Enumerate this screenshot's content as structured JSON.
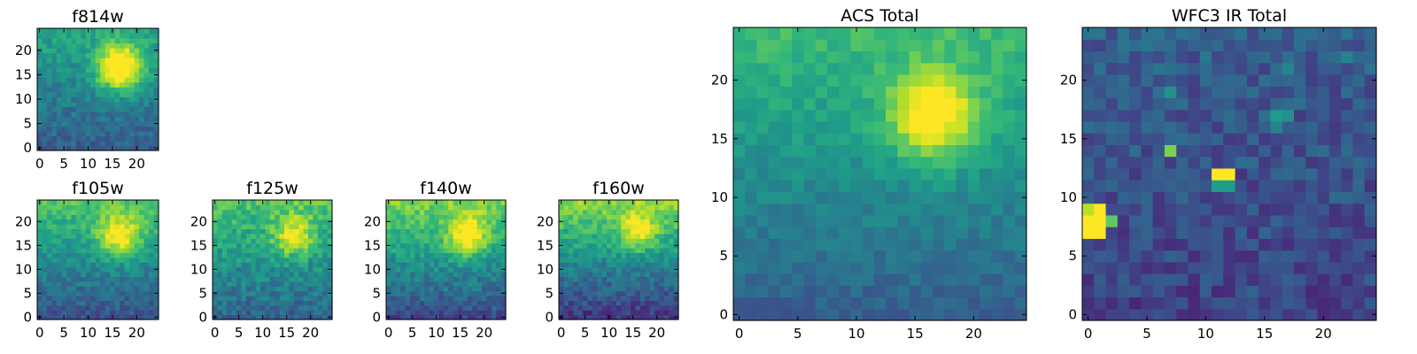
{
  "chart_data": [
    {
      "type": "heatmap",
      "panel": "small",
      "title": "f814w",
      "grid": [
        25,
        25
      ],
      "xlim": [
        0,
        24
      ],
      "ylim": [
        0,
        24
      ],
      "xticks": [
        0,
        5,
        10,
        15,
        20
      ],
      "yticks": [
        0,
        5,
        10,
        15,
        20
      ],
      "xtick_labels": [
        "0",
        "5",
        "10",
        "15",
        "20"
      ],
      "ytick_labels": [
        "0",
        "5",
        "10",
        "15",
        "20"
      ],
      "peaks": [
        {
          "x": 16.5,
          "y": 16.5,
          "amp": 0.75,
          "sigma": 3.2
        }
      ],
      "background": {
        "top": 0.58,
        "bottom": 0.3
      },
      "noise": 0.09,
      "seed": 11
    },
    {
      "type": "heatmap",
      "panel": "small",
      "title": "f105w",
      "grid": [
        25,
        25
      ],
      "xlim": [
        0,
        24
      ],
      "ylim": [
        0,
        24
      ],
      "xticks": [
        0,
        5,
        10,
        15,
        20
      ],
      "yticks": [
        0,
        5,
        10,
        15,
        20
      ],
      "xtick_labels": [
        "0",
        "5",
        "10",
        "15",
        "20"
      ],
      "ytick_labels": [
        "0",
        "5",
        "10",
        "15",
        "20"
      ],
      "peaks": [
        {
          "x": 16.5,
          "y": 17,
          "amp": 0.45,
          "sigma": 3.2
        }
      ],
      "background": {
        "top": 0.72,
        "bottom": 0.25
      },
      "noise": 0.09,
      "seed": 23
    },
    {
      "type": "heatmap",
      "panel": "small",
      "title": "f125w",
      "grid": [
        25,
        25
      ],
      "xlim": [
        0,
        24
      ],
      "ylim": [
        0,
        24
      ],
      "xticks": [
        0,
        5,
        10,
        15,
        20
      ],
      "yticks": [
        0,
        5,
        10,
        15,
        20
      ],
      "xtick_labels": [
        "0",
        "5",
        "10",
        "15",
        "20"
      ],
      "ytick_labels": [
        "0",
        "5",
        "10",
        "15",
        "20"
      ],
      "peaks": [
        {
          "x": 16.5,
          "y": 17,
          "amp": 0.38,
          "sigma": 3.0
        }
      ],
      "background": {
        "top": 0.72,
        "bottom": 0.32
      },
      "noise": 0.11,
      "seed": 37
    },
    {
      "type": "heatmap",
      "panel": "small",
      "title": "f140w",
      "grid": [
        25,
        25
      ],
      "xlim": [
        0,
        24
      ],
      "ylim": [
        0,
        24
      ],
      "xticks": [
        0,
        5,
        10,
        15,
        20
      ],
      "yticks": [
        0,
        5,
        10,
        15,
        20
      ],
      "xtick_labels": [
        "0",
        "5",
        "10",
        "15",
        "20"
      ],
      "ytick_labels": [
        "0",
        "5",
        "10",
        "15",
        "20"
      ],
      "peaks": [
        {
          "x": 16.5,
          "y": 17,
          "amp": 0.45,
          "sigma": 3.0
        }
      ],
      "background": {
        "top": 0.8,
        "bottom": 0.22
      },
      "noise": 0.1,
      "seed": 53
    },
    {
      "type": "heatmap",
      "panel": "small",
      "title": "f160w",
      "grid": [
        25,
        25
      ],
      "xlim": [
        0,
        24
      ],
      "ylim": [
        0,
        24
      ],
      "xticks": [
        0,
        5,
        10,
        15,
        20
      ],
      "yticks": [
        0,
        5,
        10,
        15,
        20
      ],
      "xtick_labels": [
        "0",
        "5",
        "10",
        "15",
        "20"
      ],
      "ytick_labels": [
        "0",
        "5",
        "10",
        "15",
        "20"
      ],
      "peaks": [
        {
          "x": 16,
          "y": 18,
          "amp": 0.35,
          "sigma": 2.8
        }
      ],
      "background": {
        "top": 0.82,
        "bottom": 0.15
      },
      "noise": 0.1,
      "seed": 71
    },
    {
      "type": "heatmap",
      "panel": "large",
      "title": "ACS Total",
      "grid": [
        25,
        25
      ],
      "xlim": [
        0,
        24
      ],
      "ylim": [
        0,
        24
      ],
      "xticks": [
        0,
        5,
        10,
        15,
        20
      ],
      "yticks": [
        0,
        5,
        10,
        15,
        20
      ],
      "xtick_labels": [
        "0",
        "5",
        "10",
        "15",
        "20"
      ],
      "ytick_labels": [
        "0",
        "5",
        "10",
        "15",
        "20"
      ],
      "peaks": [
        {
          "x": 16.5,
          "y": 17,
          "amp": 0.55,
          "sigma": 2.6
        }
      ],
      "background": {
        "top": 0.68,
        "bottom": 0.3
      },
      "noise": 0.06,
      "seed": 97
    },
    {
      "type": "heatmap",
      "panel": "large",
      "title": "WFC3 IR Total",
      "grid": [
        25,
        25
      ],
      "xlim": [
        0,
        24
      ],
      "ylim": [
        0,
        24
      ],
      "xticks": [
        0,
        5,
        10,
        15,
        20
      ],
      "yticks": [
        0,
        5,
        10,
        15,
        20
      ],
      "xtick_labels": [
        "0",
        "5",
        "10",
        "15",
        "20"
      ],
      "ytick_labels": [
        "0",
        "5",
        "10",
        "15",
        "20"
      ],
      "peaks": [],
      "background": {
        "top": 0.3,
        "bottom": 0.2
      },
      "noise": 0.1,
      "seed": 131,
      "hot_pixels": [
        {
          "col": 0,
          "row": 7,
          "value": 1.0
        },
        {
          "col": 1,
          "row": 7,
          "value": 1.0
        },
        {
          "col": 0,
          "row": 8,
          "value": 1.0
        },
        {
          "col": 1,
          "row": 8,
          "value": 1.0
        },
        {
          "col": 1,
          "row": 9,
          "value": 1.0
        },
        {
          "col": 0,
          "row": 9,
          "value": 0.9
        },
        {
          "col": 2,
          "row": 8,
          "value": 0.75
        },
        {
          "col": 11,
          "row": 12,
          "value": 1.0
        },
        {
          "col": 12,
          "row": 12,
          "value": 1.0
        },
        {
          "col": 11,
          "row": 11,
          "value": 0.55
        },
        {
          "col": 12,
          "row": 11,
          "value": 0.55
        },
        {
          "col": 7,
          "row": 14,
          "value": 0.8
        },
        {
          "col": 16,
          "row": 17,
          "value": 0.55
        },
        {
          "col": 17,
          "row": 17,
          "value": 0.5
        },
        {
          "col": 16,
          "row": 16,
          "value": 0.45
        },
        {
          "col": 7,
          "row": 19,
          "value": 0.5
        },
        {
          "col": 17,
          "row": 21,
          "value": 0.45
        },
        {
          "col": 22,
          "row": 22,
          "value": 0.45
        },
        {
          "col": 10,
          "row": 22,
          "value": 0.4
        }
      ]
    }
  ],
  "colormap": [
    "#440154",
    "#482878",
    "#3e4989",
    "#31688e",
    "#26828e",
    "#1f9e89",
    "#35b779",
    "#6ece58",
    "#b5de2b",
    "#fde725"
  ]
}
